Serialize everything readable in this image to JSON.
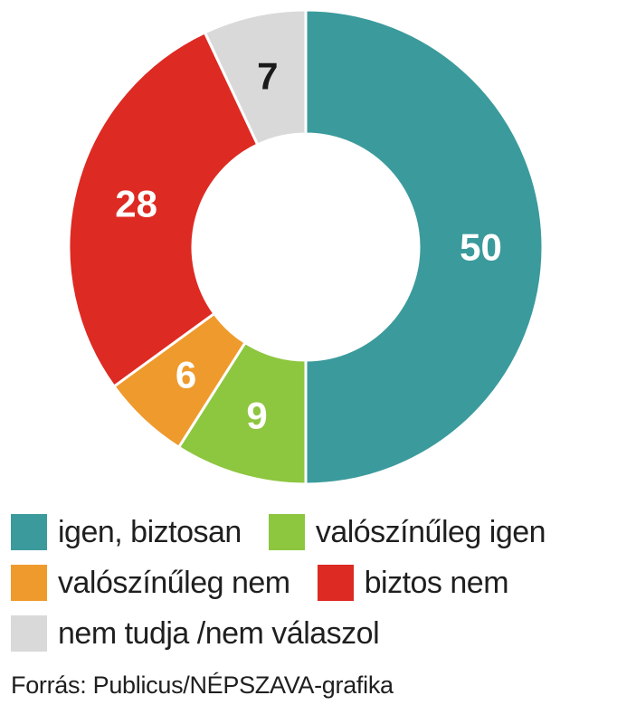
{
  "chart_data": {
    "type": "pie",
    "variant": "donut",
    "title": "",
    "categories": [
      "igen, biztosan",
      "valószínűleg igen",
      "valószínűleg nem",
      "biztos nem",
      "nem tudja /nem válaszol"
    ],
    "values": [
      50,
      9,
      6,
      28,
      7
    ],
    "value_labels": [
      "50",
      "9",
      "6",
      "28",
      "7"
    ],
    "colors": [
      "#3b9a9c",
      "#8dc63f",
      "#ef9a2d",
      "#dd2a22",
      "#d9d9d9"
    ],
    "label_colors": [
      "#ffffff",
      "#ffffff",
      "#ffffff",
      "#ffffff",
      "#1a1a1a"
    ],
    "start": "top",
    "direction": "clockwise",
    "legend_placement": "bottom"
  },
  "legend": {
    "items": [
      {
        "label": "igen, biztosan",
        "color": "#3b9a9c"
      },
      {
        "label": "valószínűleg igen",
        "color": "#8dc63f"
      },
      {
        "label": "valószínűleg nem",
        "color": "#ef9a2d"
      },
      {
        "label": "biztos nem",
        "color": "#dd2a22"
      },
      {
        "label": "nem tudja /nem válaszol",
        "color": "#d9d9d9"
      }
    ]
  },
  "source": "Forrás: Publicus/NÉPSZAVA-grafika"
}
